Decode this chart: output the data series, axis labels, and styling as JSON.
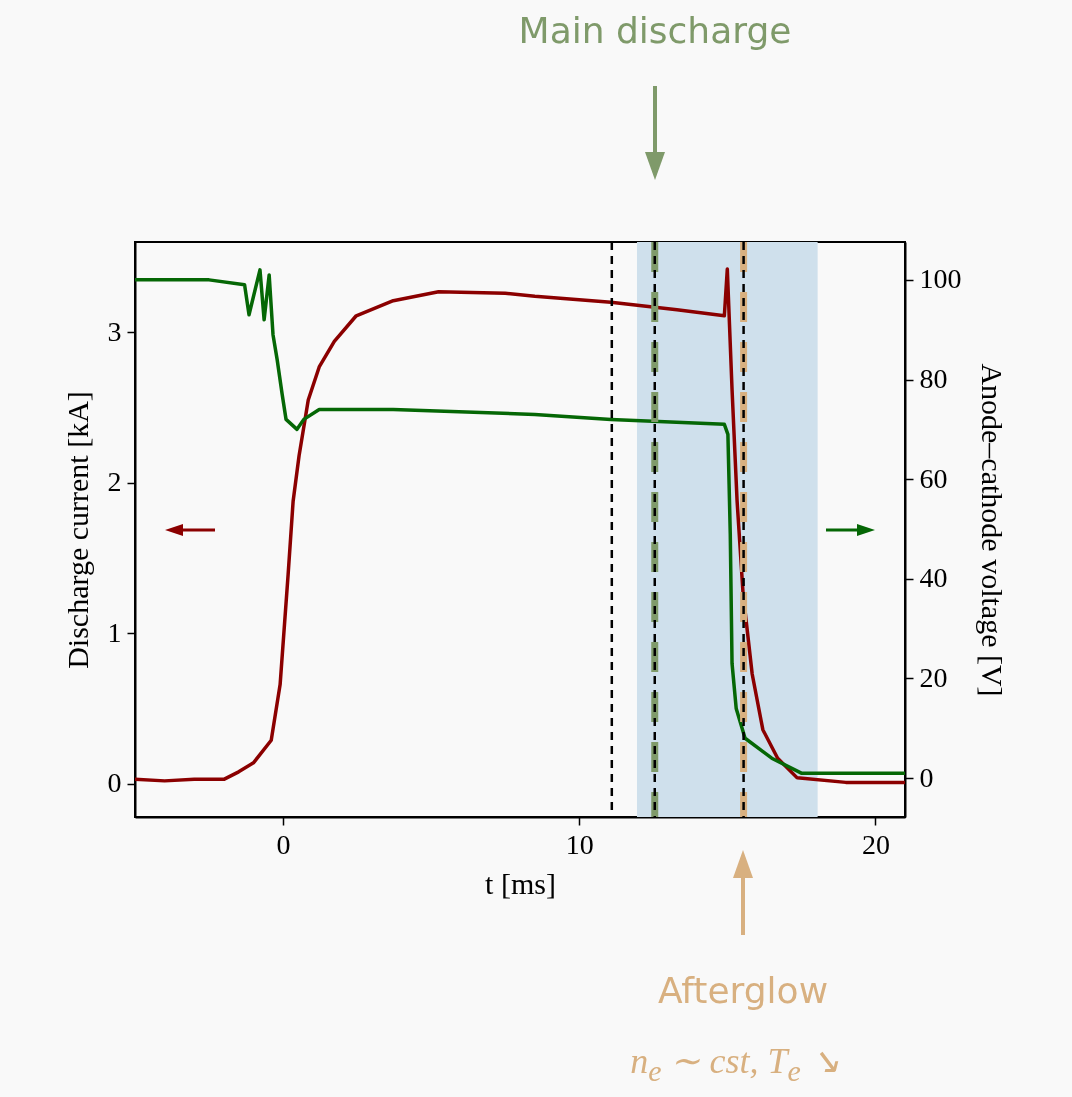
{
  "chart_data": {
    "type": "line",
    "xlabel": "t [ms]",
    "ylabel": "Discharge current [kA]",
    "y2label": "Anode–cathode voltage [V]",
    "xlim": [
      -5,
      21
    ],
    "xticks": [
      0,
      10,
      20
    ],
    "ylim": [
      -0.22,
      3.6
    ],
    "yticks": [
      0,
      1,
      2,
      3
    ],
    "y2lim": [
      -7.8,
      107.6
    ],
    "y2ticks": [
      0,
      20,
      40,
      60,
      80,
      100
    ],
    "grid": false,
    "line_style": "solid",
    "marker": "none",
    "series": [
      {
        "color": "#8b0000",
        "axis": "y",
        "x": [
          -5,
          -4,
          -3,
          -2,
          -1.5,
          -1,
          -0.4,
          -0.1,
          0.17,
          0.34,
          0.54,
          0.85,
          1.22,
          1.73,
          2.47,
          3.72,
          5.25,
          7.5,
          8.5,
          11.07,
          13.3,
          14.9,
          15.0,
          15.16,
          15.33,
          15.53,
          15.84,
          16.2,
          16.7,
          17.36,
          19.0,
          21
        ],
        "values": [
          0.03,
          0.02,
          0.03,
          0.03,
          0.08,
          0.14,
          0.29,
          0.66,
          1.39,
          1.88,
          2.18,
          2.55,
          2.77,
          2.94,
          3.11,
          3.21,
          3.27,
          3.26,
          3.24,
          3.2,
          3.15,
          3.11,
          3.42,
          2.62,
          1.88,
          1.27,
          0.73,
          0.36,
          0.17,
          0.04,
          0.01,
          0.01
        ]
      },
      {
        "color": "#056705",
        "axis": "y2",
        "x": [
          -5,
          -2.5,
          -1.3,
          -1.15,
          -0.78,
          -0.64,
          -0.47,
          -0.34,
          -0.2,
          -0.03,
          0.1,
          0.47,
          0.7,
          1.22,
          3.72,
          8.5,
          11.07,
          14.9,
          15.02,
          15.1,
          15.16,
          15.3,
          15.6,
          16.5,
          17.5,
          21
        ],
        "values": [
          100,
          100,
          99,
          93,
          102,
          92,
          101,
          89,
          84,
          77,
          72,
          70,
          72,
          74,
          74,
          73,
          72,
          71,
          69,
          49,
          23,
          14,
          8,
          4,
          1,
          1
        ]
      }
    ],
    "bands": [
      {
        "axis": "x",
        "from": 11.95,
        "to": 18.05,
        "color": "#cfe0ec"
      }
    ],
    "ref_lines": [
      {
        "axis": "x",
        "value": 12.55,
        "color": "#7f9a6a",
        "line_style": "dashed"
      },
      {
        "axis": "x",
        "value": 15.55,
        "color": "#d8b080",
        "line_style": "dashed"
      },
      {
        "axis": "x",
        "value": 11.1,
        "color": "#000000",
        "line_style": "dashed"
      },
      {
        "axis": "x",
        "value": 12.55,
        "color": "#000000",
        "line_style": "dashed"
      },
      {
        "axis": "x",
        "value": 15.55,
        "color": "#000000",
        "line_style": "dashed"
      }
    ],
    "annotations": [
      "Main discharge",
      "Afterglow",
      "n$_{e}$ ∼ cst, T$_{e}$ ↘"
    ]
  }
}
